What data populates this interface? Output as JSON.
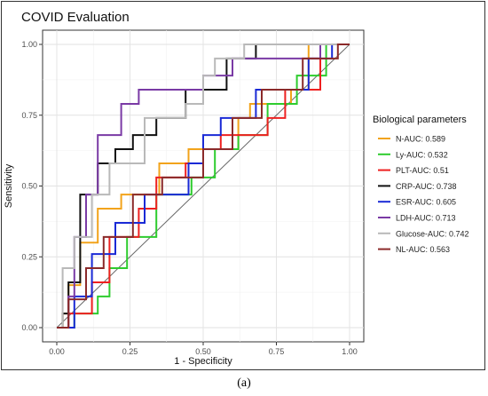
{
  "caption": "(a)",
  "chart_data": {
    "type": "line",
    "title": "COVID Evaluation",
    "xlabel": "1 - Specificity",
    "ylabel": "Sensitivity",
    "xlim": [
      0,
      1
    ],
    "ylim": [
      0,
      1
    ],
    "xticks": [
      0,
      0.25,
      0.5,
      0.75,
      1
    ],
    "xtick_labels": [
      "0.00",
      "0.25",
      "0.50",
      "0.75",
      "1.00"
    ],
    "yticks": [
      0,
      0.25,
      0.5,
      0.75,
      1
    ],
    "ytick_labels": [
      "0.00",
      "0.25",
      "0.50",
      "0.75",
      "1.00"
    ],
    "grid": true,
    "diagonal_reference_line": true,
    "legend": {
      "title": "Biological parameters",
      "placement": "right"
    },
    "series": [
      {
        "name": "N-AUC: 0.589",
        "color": "#f2a31b",
        "x": [
          0,
          0.02,
          0.02,
          0.04,
          0.04,
          0.08,
          0.08,
          0.14,
          0.14,
          0.22,
          0.22,
          0.35,
          0.35,
          0.45,
          0.45,
          0.62,
          0.62,
          0.66,
          0.66,
          0.8,
          0.8,
          0.86,
          0.86,
          1
        ],
        "y": [
          0,
          0,
          0.05,
          0.05,
          0.15,
          0.15,
          0.3,
          0.3,
          0.42,
          0.42,
          0.47,
          0.47,
          0.58,
          0.58,
          0.63,
          0.63,
          0.74,
          0.74,
          0.79,
          0.79,
          0.84,
          0.84,
          1,
          1
        ]
      },
      {
        "name": "Ly-AUC: 0.532",
        "color": "#2ecc2e",
        "x": [
          0,
          0.06,
          0.06,
          0.14,
          0.14,
          0.18,
          0.18,
          0.24,
          0.24,
          0.34,
          0.34,
          0.46,
          0.46,
          0.54,
          0.54,
          0.62,
          0.62,
          0.72,
          0.72,
          0.82,
          0.82,
          0.92,
          0.92,
          1
        ],
        "y": [
          0,
          0,
          0.05,
          0.05,
          0.11,
          0.11,
          0.21,
          0.21,
          0.32,
          0.32,
          0.47,
          0.47,
          0.53,
          0.53,
          0.63,
          0.63,
          0.68,
          0.68,
          0.79,
          0.79,
          0.89,
          0.89,
          1,
          1
        ]
      },
      {
        "name": "PLT-AUC: 0.51",
        "color": "#ee2020",
        "x": [
          0,
          0.04,
          0.04,
          0.12,
          0.12,
          0.18,
          0.18,
          0.28,
          0.28,
          0.34,
          0.34,
          0.44,
          0.44,
          0.5,
          0.5,
          0.56,
          0.56,
          0.72,
          0.72,
          0.78,
          0.78,
          0.9,
          0.9,
          1
        ],
        "y": [
          0,
          0,
          0.05,
          0.05,
          0.16,
          0.16,
          0.32,
          0.32,
          0.42,
          0.42,
          0.53,
          0.53,
          0.58,
          0.58,
          0.63,
          0.63,
          0.68,
          0.68,
          0.74,
          0.74,
          0.84,
          0.84,
          1,
          1
        ]
      },
      {
        "name": "CRP-AUC: 0.738",
        "color": "#111111",
        "x": [
          0,
          0.02,
          0.02,
          0.04,
          0.04,
          0.08,
          0.08,
          0.14,
          0.14,
          0.2,
          0.2,
          0.26,
          0.26,
          0.34,
          0.34,
          0.44,
          0.44,
          0.58,
          0.58,
          0.68,
          0.68,
          0.88,
          0.88,
          1
        ],
        "y": [
          0,
          0,
          0.05,
          0.05,
          0.16,
          0.16,
          0.47,
          0.47,
          0.58,
          0.58,
          0.63,
          0.63,
          0.68,
          0.68,
          0.74,
          0.74,
          0.84,
          0.84,
          0.95,
          0.95,
          1,
          1,
          1,
          1
        ]
      },
      {
        "name": "ESR-AUC: 0.605",
        "color": "#1a2ad6",
        "x": [
          0,
          0.06,
          0.06,
          0.12,
          0.12,
          0.2,
          0.2,
          0.3,
          0.3,
          0.45,
          0.45,
          0.5,
          0.5,
          0.56,
          0.56,
          0.68,
          0.68,
          0.86,
          0.86,
          0.94,
          0.94,
          1
        ],
        "y": [
          0,
          0,
          0.11,
          0.11,
          0.26,
          0.26,
          0.37,
          0.37,
          0.47,
          0.47,
          0.58,
          0.58,
          0.68,
          0.68,
          0.74,
          0.74,
          0.84,
          0.84,
          0.95,
          0.95,
          1,
          1
        ]
      },
      {
        "name": "LDH-AUC: 0.713",
        "color": "#7a3aa5",
        "x": [
          0,
          0.04,
          0.04,
          0.06,
          0.06,
          0.1,
          0.1,
          0.14,
          0.14,
          0.22,
          0.22,
          0.28,
          0.28,
          0.5,
          0.5,
          0.6,
          0.6,
          0.9,
          0.9,
          1
        ],
        "y": [
          0,
          0,
          0.11,
          0.11,
          0.32,
          0.32,
          0.47,
          0.47,
          0.68,
          0.68,
          0.79,
          0.79,
          0.84,
          0.84,
          0.89,
          0.89,
          0.95,
          0.95,
          1,
          1
        ]
      },
      {
        "name": "Glucose-AUC: 0.742",
        "color": "#b9b9b9",
        "x": [
          0,
          0.02,
          0.02,
          0.06,
          0.06,
          0.12,
          0.12,
          0.18,
          0.18,
          0.3,
          0.3,
          0.44,
          0.44,
          0.5,
          0.5,
          0.54,
          0.54,
          0.64,
          0.64,
          0.84,
          0.84,
          1
        ],
        "y": [
          0,
          0,
          0.21,
          0.21,
          0.32,
          0.32,
          0.47,
          0.47,
          0.58,
          0.58,
          0.74,
          0.74,
          0.79,
          0.79,
          0.89,
          0.89,
          0.95,
          0.95,
          1,
          1,
          1,
          1
        ]
      },
      {
        "name": "NL-AUC: 0.563",
        "color": "#8b2a2a",
        "x": [
          0,
          0.04,
          0.04,
          0.1,
          0.1,
          0.16,
          0.16,
          0.26,
          0.26,
          0.36,
          0.36,
          0.5,
          0.5,
          0.6,
          0.6,
          0.7,
          0.7,
          0.84,
          0.84,
          0.96,
          0.96,
          1
        ],
        "y": [
          0,
          0,
          0.1,
          0.1,
          0.21,
          0.21,
          0.32,
          0.32,
          0.47,
          0.47,
          0.53,
          0.53,
          0.63,
          0.63,
          0.74,
          0.74,
          0.84,
          0.84,
          0.95,
          0.95,
          1,
          1
        ]
      }
    ]
  }
}
